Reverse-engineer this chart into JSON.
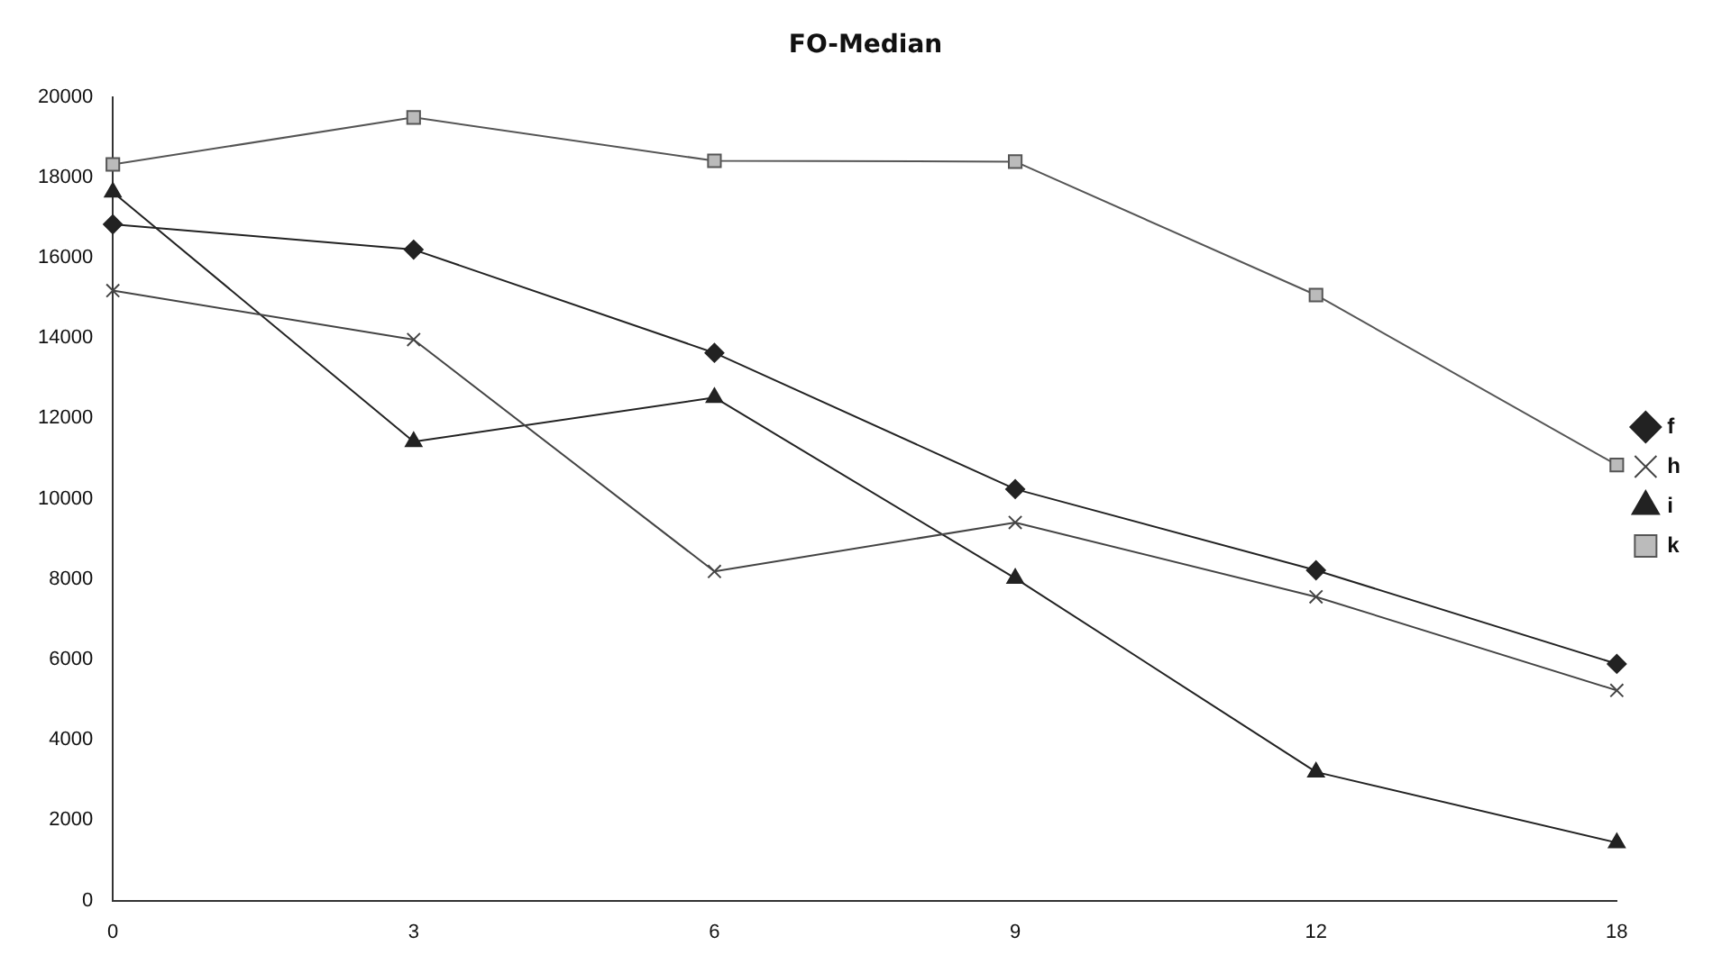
{
  "chart_data": {
    "type": "line",
    "title": "FO-Median",
    "categories": [
      "0",
      "3",
      "6",
      "9",
      "12",
      "18"
    ],
    "series": [
      {
        "name": "f",
        "color": "#222222",
        "marker": "diamond",
        "values": [
          16830,
          16200,
          13630,
          10240,
          8220,
          5890
        ]
      },
      {
        "name": "h",
        "color": "#444444",
        "marker": "cross",
        "values": [
          15180,
          13960,
          8190,
          9410,
          7560,
          5230
        ]
      },
      {
        "name": "i",
        "color": "#222222",
        "marker": "triangle",
        "values": [
          17630,
          11420,
          12520,
          8020,
          3200,
          1440
        ]
      },
      {
        "name": "k",
        "color": "#555555",
        "marker": "square",
        "values": [
          18320,
          19490,
          18410,
          18390,
          15070,
          10840
        ]
      }
    ],
    "ylim": [
      0,
      20000
    ],
    "yticks": [
      0,
      2000,
      4000,
      6000,
      8000,
      10000,
      12000,
      14000,
      16000,
      18000,
      20000
    ],
    "grid": false,
    "legend": "right",
    "line_style": "solid"
  }
}
